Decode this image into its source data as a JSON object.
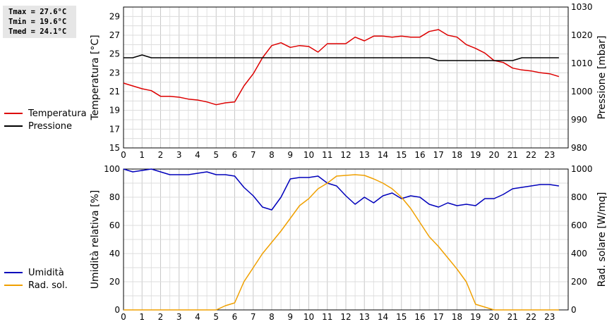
{
  "stats": {
    "tmax": "Tmax = 27.6°C",
    "tmin": "Tmin = 19.6°C",
    "tmed": "Tmed = 24.1°C"
  },
  "legend_top": [
    {
      "label": "Temperatura",
      "color": "#dd0000"
    },
    {
      "label": "Pressione",
      "color": "#000000"
    }
  ],
  "legend_bottom": [
    {
      "label": "Umidità",
      "color": "#0000bb"
    },
    {
      "label": "Rad. sol.",
      "color": "#f0a000"
    }
  ],
  "chart_data": [
    {
      "type": "line",
      "grid": true,
      "xlim": [
        0,
        24
      ],
      "xticks": [
        0,
        1,
        2,
        3,
        4,
        5,
        6,
        7,
        8,
        9,
        10,
        11,
        12,
        13,
        14,
        15,
        16,
        17,
        18,
        19,
        20,
        21,
        22,
        23
      ],
      "ylabel": "Temperatura [°C]",
      "ylim": [
        15,
        30
      ],
      "yticks": [
        15,
        17,
        19,
        21,
        23,
        25,
        27,
        29
      ],
      "y2label": "Pressione [mbar]",
      "y2lim": [
        980,
        1030
      ],
      "y2ticks": [
        980,
        990,
        1000,
        1010,
        1020,
        1030
      ],
      "series": [
        {
          "name": "Temperatura",
          "axis": "left",
          "color": "#dd0000",
          "x": [
            0,
            0.5,
            1,
            1.5,
            2,
            2.5,
            3,
            3.5,
            4,
            4.5,
            5,
            5.5,
            6,
            6.5,
            7,
            7.5,
            8,
            8.5,
            9,
            9.5,
            10,
            10.5,
            11,
            11.5,
            12,
            12.5,
            13,
            13.5,
            14,
            14.5,
            15,
            15.5,
            16,
            16.5,
            17,
            17.5,
            18,
            18.5,
            19,
            19.5,
            20,
            20.5,
            21,
            21.5,
            22,
            22.5,
            23,
            23.5
          ],
          "y": [
            21.9,
            21.6,
            21.3,
            21.1,
            20.5,
            20.5,
            20.4,
            20.2,
            20.1,
            19.9,
            19.6,
            19.8,
            19.9,
            21.6,
            22.9,
            24.6,
            25.9,
            26.2,
            25.7,
            25.9,
            25.8,
            25.2,
            26.1,
            26.1,
            26.1,
            26.8,
            26.4,
            26.9,
            26.9,
            26.8,
            26.9,
            26.8,
            26.8,
            27.4,
            27.6,
            27.0,
            26.8,
            26.0,
            25.6,
            25.1,
            24.3,
            24.1,
            23.5,
            23.3,
            23.2,
            23.0,
            22.9,
            22.6
          ]
        },
        {
          "name": "Pressione",
          "axis": "right",
          "color": "#000000",
          "x": [
            0,
            0.5,
            1,
            1.5,
            2,
            16.5,
            17,
            21,
            21.5,
            23.5
          ],
          "y": [
            1012,
            1012,
            1013,
            1012,
            1012,
            1012,
            1011,
            1011,
            1012,
            1012
          ]
        }
      ]
    },
    {
      "type": "line",
      "grid": true,
      "xlim": [
        0,
        24
      ],
      "xticks": [
        0,
        1,
        2,
        3,
        4,
        5,
        6,
        7,
        8,
        9,
        10,
        11,
        12,
        13,
        14,
        15,
        16,
        17,
        18,
        19,
        20,
        21,
        22,
        23
      ],
      "ylabel": "Umidità relativa [%]",
      "ylim": [
        0,
        100
      ],
      "yticks": [
        0,
        20,
        40,
        60,
        80,
        100
      ],
      "y2label": "Rad. solare [W/mq]",
      "y2lim": [
        0,
        1000
      ],
      "y2ticks": [
        0,
        200,
        400,
        600,
        800,
        1000
      ],
      "series": [
        {
          "name": "Umidità",
          "axis": "left",
          "color": "#0000bb",
          "x": [
            0,
            0.5,
            1,
            1.5,
            2,
            2.5,
            3,
            3.5,
            4,
            4.5,
            5,
            5.5,
            6,
            6.5,
            7,
            7.5,
            8,
            8.5,
            9,
            9.5,
            10,
            10.5,
            11,
            11.5,
            12,
            12.5,
            13,
            13.5,
            14,
            14.5,
            15,
            15.5,
            16,
            16.5,
            17,
            17.5,
            18,
            18.5,
            19,
            19.5,
            20,
            20.5,
            21,
            21.5,
            22,
            22.5,
            23,
            23.5
          ],
          "y": [
            100,
            98,
            99,
            100,
            98,
            96,
            96,
            96,
            97,
            98,
            96,
            96,
            95,
            87,
            81,
            73,
            71,
            80,
            93,
            94,
            94,
            95,
            90,
            88,
            81,
            75,
            80,
            76,
            81,
            83,
            79,
            81,
            80,
            75,
            73,
            76,
            74,
            75,
            74,
            79,
            79,
            82,
            86,
            87,
            88,
            89,
            89,
            88
          ]
        },
        {
          "name": "Rad. sol.",
          "axis": "right",
          "color": "#f0a000",
          "x": [
            0,
            0.5,
            1,
            1.5,
            2,
            2.5,
            3,
            3.5,
            4,
            4.5,
            5,
            5.5,
            6,
            6.5,
            7,
            7.5,
            8,
            8.5,
            9,
            9.5,
            10,
            10.5,
            11,
            11.5,
            12,
            12.5,
            13,
            13.5,
            14,
            14.5,
            15,
            15.5,
            16,
            16.5,
            17,
            17.5,
            18,
            18.5,
            19,
            19.5,
            20,
            20.5,
            21,
            21.5,
            22,
            22.5,
            23,
            23.5
          ],
          "y": [
            0,
            0,
            0,
            0,
            0,
            0,
            0,
            0,
            0,
            0,
            0,
            30,
            50,
            200,
            300,
            400,
            480,
            560,
            650,
            740,
            790,
            860,
            900,
            950,
            955,
            960,
            955,
            930,
            900,
            860,
            800,
            720,
            620,
            520,
            450,
            370,
            290,
            200,
            40,
            20,
            0,
            0,
            0,
            0,
            0,
            0,
            0,
            0
          ]
        }
      ]
    }
  ]
}
